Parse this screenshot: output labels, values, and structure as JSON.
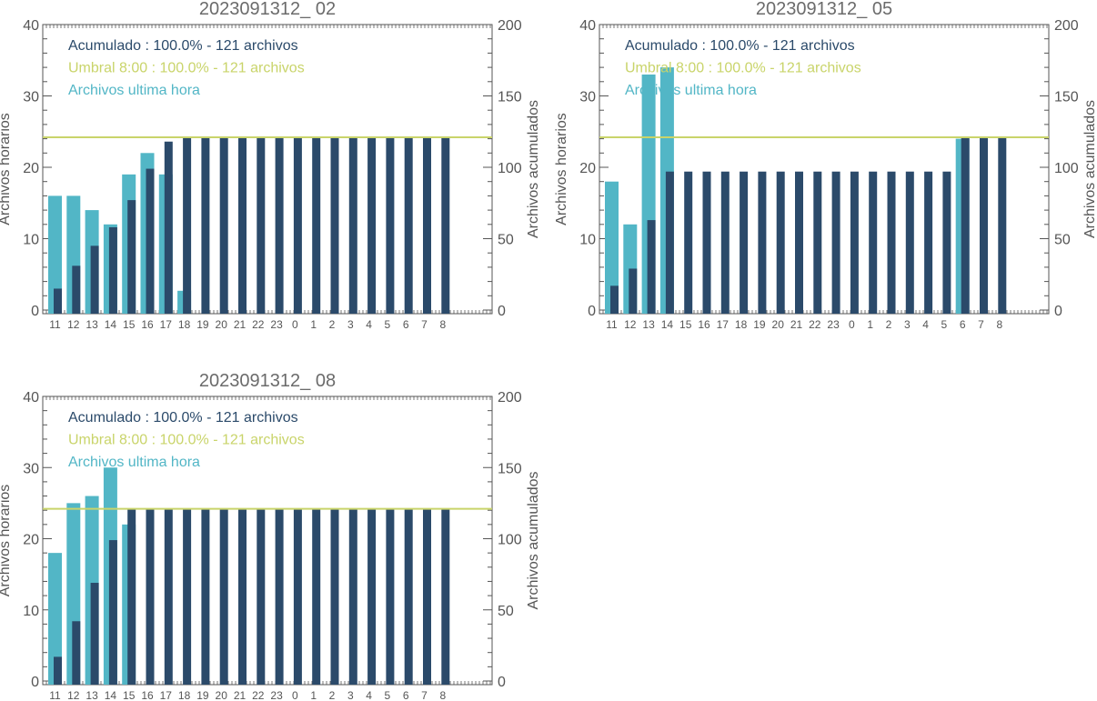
{
  "colors": {
    "acumulado": "#2b4a6a",
    "umbral": "#c9d46a",
    "ultima_hora": "#52b6c6",
    "axis": "#555555",
    "title": "#6b6b6b"
  },
  "chart_data": [
    {
      "type": "bar",
      "title": "2023091312_ 02",
      "ylabel": "Archivos horarios",
      "y2label": "Archivos acumulados",
      "ylim": [
        0,
        40
      ],
      "y2lim": [
        0,
        200
      ],
      "yticks": [
        0,
        10,
        20,
        30,
        40
      ],
      "y2ticks": [
        0,
        50,
        100,
        150,
        200
      ],
      "categories": [
        "11",
        "12",
        "13",
        "14",
        "15",
        "16",
        "17",
        "18",
        "19",
        "20",
        "21",
        "22",
        "23",
        "0",
        "1",
        "2",
        "3",
        "4",
        "5",
        "6",
        "7",
        "8"
      ],
      "legend": [
        {
          "key": "acumulado",
          "text": "Acumulado : 100.0% - 121 archivos"
        },
        {
          "key": "umbral",
          "text": "Umbral 8:00 : 100.0% - 121 archivos"
        },
        {
          "key": "ultima_hora",
          "text": "Archivos ultima hora"
        }
      ],
      "threshold": 121,
      "series": [
        {
          "name": "Archivos ultima hora",
          "axis": "left",
          "values": [
            16,
            16,
            14,
            12,
            19,
            22,
            19,
            2.7,
            0,
            0,
            0,
            0,
            0,
            0,
            0,
            0,
            0,
            0,
            0,
            0,
            0,
            0
          ]
        },
        {
          "name": "Acumulado",
          "axis": "right",
          "values": [
            15,
            31,
            45,
            58,
            77,
            99,
            118,
            121,
            121,
            121,
            121,
            121,
            121,
            121,
            121,
            121,
            121,
            121,
            121,
            121,
            121,
            121
          ]
        }
      ]
    },
    {
      "type": "bar",
      "title": "2023091312_ 05",
      "ylabel": "Archivos horarios",
      "y2label": "Archivos acumulados",
      "ylim": [
        0,
        40
      ],
      "y2lim": [
        0,
        200
      ],
      "yticks": [
        0,
        10,
        20,
        30,
        40
      ],
      "y2ticks": [
        0,
        50,
        100,
        150,
        200
      ],
      "categories": [
        "11",
        "12",
        "13",
        "14",
        "15",
        "16",
        "17",
        "18",
        "19",
        "20",
        "21",
        "22",
        "23",
        "0",
        "1",
        "2",
        "3",
        "4",
        "5",
        "6",
        "7",
        "8"
      ],
      "legend": [
        {
          "key": "acumulado",
          "text": "Acumulado : 100.0% - 121 archivos"
        },
        {
          "key": "umbral",
          "text": "Umbral 8:00 : 100.0% - 121 archivos"
        },
        {
          "key": "ultima_hora",
          "text": "Archivos ultima hora"
        }
      ],
      "threshold": 121,
      "series": [
        {
          "name": "Archivos ultima hora",
          "axis": "left",
          "values": [
            18,
            12,
            33,
            34,
            0,
            0,
            0,
            0,
            0,
            0,
            0,
            0,
            0,
            0,
            0,
            0,
            0,
            0,
            0,
            24,
            0,
            0
          ]
        },
        {
          "name": "Acumulado",
          "axis": "right",
          "values": [
            17,
            29,
            63,
            97,
            97,
            97,
            97,
            97,
            97,
            97,
            97,
            97,
            97,
            97,
            97,
            97,
            97,
            97,
            97,
            121,
            121,
            121
          ]
        }
      ]
    },
    {
      "type": "bar",
      "title": "2023091312_ 08",
      "ylabel": "Archivos horarios",
      "y2label": "Archivos acumulados",
      "ylim": [
        0,
        40
      ],
      "y2lim": [
        0,
        200
      ],
      "yticks": [
        0,
        10,
        20,
        30,
        40
      ],
      "y2ticks": [
        0,
        50,
        100,
        150,
        200
      ],
      "categories": [
        "11",
        "12",
        "13",
        "14",
        "15",
        "16",
        "17",
        "18",
        "19",
        "20",
        "21",
        "22",
        "23",
        "0",
        "1",
        "2",
        "3",
        "4",
        "5",
        "6",
        "7",
        "8"
      ],
      "legend": [
        {
          "key": "acumulado",
          "text": "Acumulado : 100.0% - 121 archivos"
        },
        {
          "key": "umbral",
          "text": "Umbral 8:00 : 100.0% - 121 archivos"
        },
        {
          "key": "ultima_hora",
          "text": "Archivos ultima hora"
        }
      ],
      "threshold": 121,
      "series": [
        {
          "name": "Archivos ultima hora",
          "axis": "left",
          "values": [
            18,
            25,
            26,
            30,
            22,
            0,
            0,
            0,
            0,
            0,
            0,
            0,
            0,
            0,
            0,
            0,
            0,
            0,
            0,
            0,
            0,
            0
          ]
        },
        {
          "name": "Acumulado",
          "axis": "right",
          "values": [
            17,
            42,
            69,
            99,
            121,
            121,
            121,
            121,
            121,
            121,
            121,
            121,
            121,
            121,
            121,
            121,
            121,
            121,
            121,
            121,
            121,
            121
          ]
        }
      ]
    }
  ]
}
